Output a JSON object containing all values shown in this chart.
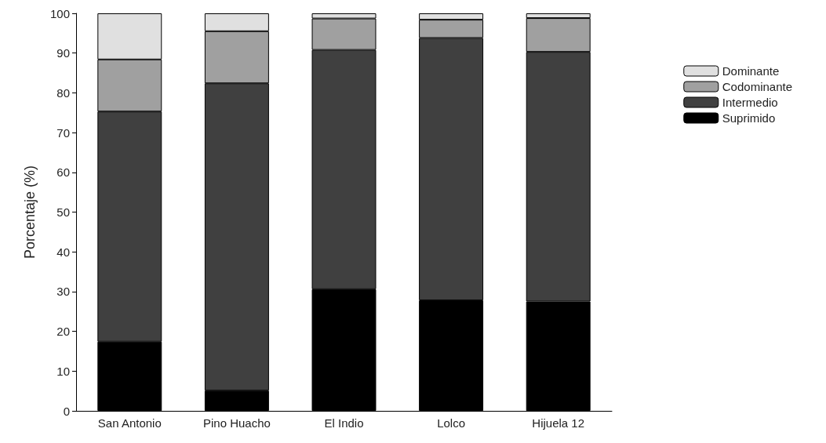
{
  "chart_data": {
    "type": "bar",
    "stacked": true,
    "ylabel": "Porcentaje (%)",
    "categories": [
      "San Antonio",
      "Pino Huacho",
      "El Indio",
      "Lolco",
      "Hijuela 12"
    ],
    "series": [
      {
        "name": "Suprimido",
        "color": "#000000",
        "values": [
          17.4,
          5.1,
          30.6,
          27.8,
          27.5
        ]
      },
      {
        "name": "Intermedio",
        "color": "#404040",
        "values": [
          57.9,
          77.3,
          60.2,
          66.0,
          62.8
        ]
      },
      {
        "name": "Codominante",
        "color": "#a0a0a0",
        "values": [
          13.1,
          13.1,
          7.9,
          4.6,
          8.5
        ]
      },
      {
        "name": "Dominante",
        "color": "#e0e0e0",
        "values": [
          11.6,
          4.5,
          1.3,
          1.6,
          1.2
        ]
      }
    ],
    "ylim": [
      0,
      100
    ],
    "yticks": [
      0,
      10,
      20,
      30,
      40,
      50,
      60,
      70,
      80,
      90,
      100
    ],
    "grid": false,
    "legend": "top right"
  }
}
